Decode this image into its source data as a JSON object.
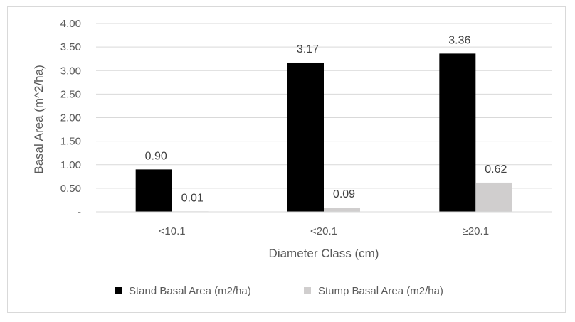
{
  "chart_data": {
    "type": "bar",
    "title": "",
    "xlabel": "Diameter Class (cm)",
    "ylabel": "Basal Area (m^2/ha)",
    "categories": [
      "<10.1",
      "<20.1",
      "≥20.1"
    ],
    "ylim": [
      0,
      4
    ],
    "yticks": [
      0,
      0.5,
      1.0,
      1.5,
      2.0,
      2.5,
      3.0,
      3.5,
      4.0
    ],
    "ytick_labels": [
      "-",
      "0.50",
      "1.00",
      "1.50",
      "2.00",
      "2.50",
      "3.00",
      "3.50",
      "4.00"
    ],
    "grid": "horizontal",
    "legend_position": "bottom",
    "series": [
      {
        "name": "Stand Basal Area (m2/ha)",
        "color": "#000000",
        "values": [
          0.9,
          3.17,
          3.36
        ],
        "labels": [
          "0.90",
          "3.17",
          "3.36"
        ]
      },
      {
        "name": "Stump Basal Area (m2/ha)",
        "color": "#d0cece",
        "values": [
          0.01,
          0.09,
          0.62
        ],
        "labels": [
          "0.01",
          "0.09",
          "0.62"
        ]
      }
    ]
  }
}
